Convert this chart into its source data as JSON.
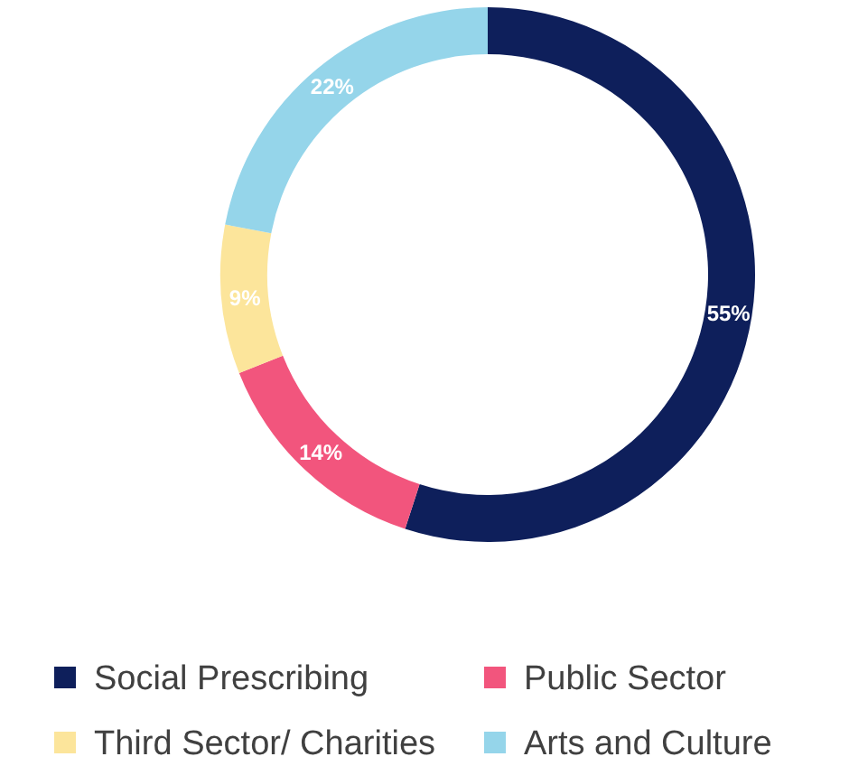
{
  "chart_data": {
    "type": "donut",
    "categories": [
      "Social Prescribing",
      "Public Sector",
      "Third Sector/ Charities",
      "Arts and Culture"
    ],
    "values": [
      55,
      14,
      9,
      22
    ],
    "colors": [
      "#0e1f5b",
      "#f2557d",
      "#fce59b",
      "#95d5ea"
    ],
    "value_labels": [
      "55%",
      "14%",
      "9%",
      "22%"
    ],
    "legend": "bottom"
  }
}
